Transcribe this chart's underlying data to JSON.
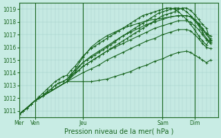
{
  "title": "",
  "xlabel": "Pression niveau de la mer( hPa )",
  "bg_color": "#c8ece4",
  "grid_color_major": "#9ecec8",
  "grid_color_minor": "#b8dcd8",
  "line_color": "#1a6620",
  "tick_color": "#1a6620",
  "label_color": "#1a6620",
  "ylim": [
    1010.5,
    1019.5
  ],
  "yticks": [
    1011,
    1012,
    1013,
    1014,
    1015,
    1016,
    1017,
    1018,
    1019
  ],
  "day_labels": [
    "Mer",
    "Ven",
    "Jeu",
    "Sam",
    "Dim"
  ],
  "day_positions": [
    0,
    0.083,
    0.333,
    0.75,
    0.917
  ],
  "lines": [
    [
      [
        0.0,
        1010.7
      ],
      [
        0.021,
        1011.0
      ],
      [
        0.042,
        1011.2
      ],
      [
        0.063,
        1011.5
      ],
      [
        0.083,
        1011.8
      ],
      [
        0.104,
        1012.0
      ],
      [
        0.125,
        1012.2
      ],
      [
        0.146,
        1012.5
      ],
      [
        0.167,
        1012.7
      ],
      [
        0.188,
        1013.0
      ],
      [
        0.208,
        1013.2
      ],
      [
        0.229,
        1013.3
      ],
      [
        0.25,
        1013.5
      ],
      [
        0.271,
        1013.8
      ],
      [
        0.292,
        1014.0
      ],
      [
        0.313,
        1014.2
      ],
      [
        0.333,
        1014.5
      ],
      [
        0.354,
        1014.7
      ],
      [
        0.375,
        1014.9
      ],
      [
        0.396,
        1015.1
      ],
      [
        0.417,
        1015.3
      ],
      [
        0.438,
        1015.5
      ],
      [
        0.458,
        1015.7
      ],
      [
        0.479,
        1015.9
      ],
      [
        0.5,
        1016.1
      ],
      [
        0.521,
        1016.3
      ],
      [
        0.542,
        1016.5
      ],
      [
        0.563,
        1016.7
      ],
      [
        0.583,
        1016.9
      ],
      [
        0.604,
        1017.1
      ],
      [
        0.625,
        1017.3
      ],
      [
        0.646,
        1017.5
      ],
      [
        0.667,
        1017.7
      ],
      [
        0.688,
        1017.9
      ],
      [
        0.708,
        1018.1
      ],
      [
        0.729,
        1018.3
      ],
      [
        0.75,
        1018.5
      ],
      [
        0.771,
        1018.6
      ],
      [
        0.792,
        1018.7
      ],
      [
        0.813,
        1018.8
      ],
      [
        0.833,
        1019.0
      ],
      [
        0.854,
        1019.1
      ],
      [
        0.875,
        1019.1
      ],
      [
        0.896,
        1018.9
      ],
      [
        0.917,
        1018.6
      ],
      [
        0.938,
        1018.2
      ],
      [
        0.958,
        1017.8
      ],
      [
        0.979,
        1017.5
      ],
      [
        1.0,
        1016.5
      ]
    ],
    [
      [
        0.0,
        1010.7
      ],
      [
        0.021,
        1011.0
      ],
      [
        0.042,
        1011.2
      ],
      [
        0.063,
        1011.5
      ],
      [
        0.083,
        1011.8
      ],
      [
        0.104,
        1012.0
      ],
      [
        0.125,
        1012.2
      ],
      [
        0.146,
        1012.5
      ],
      [
        0.167,
        1012.7
      ],
      [
        0.188,
        1013.0
      ],
      [
        0.208,
        1013.2
      ],
      [
        0.229,
        1013.3
      ],
      [
        0.25,
        1013.5
      ],
      [
        0.271,
        1013.9
      ],
      [
        0.292,
        1014.2
      ],
      [
        0.313,
        1014.5
      ],
      [
        0.333,
        1014.8
      ],
      [
        0.354,
        1015.0
      ],
      [
        0.375,
        1015.2
      ],
      [
        0.396,
        1015.4
      ],
      [
        0.417,
        1015.6
      ],
      [
        0.438,
        1015.8
      ],
      [
        0.458,
        1016.0
      ],
      [
        0.479,
        1016.2
      ],
      [
        0.5,
        1016.4
      ],
      [
        0.521,
        1016.7
      ],
      [
        0.542,
        1016.9
      ],
      [
        0.563,
        1017.1
      ],
      [
        0.583,
        1017.3
      ],
      [
        0.604,
        1017.5
      ],
      [
        0.625,
        1017.7
      ],
      [
        0.646,
        1017.9
      ],
      [
        0.667,
        1018.1
      ],
      [
        0.688,
        1018.3
      ],
      [
        0.708,
        1018.5
      ],
      [
        0.729,
        1018.7
      ],
      [
        0.75,
        1018.8
      ],
      [
        0.771,
        1018.9
      ],
      [
        0.792,
        1019.0
      ],
      [
        0.813,
        1019.1
      ],
      [
        0.833,
        1019.1
      ],
      [
        0.854,
        1019.0
      ],
      [
        0.875,
        1018.8
      ],
      [
        0.896,
        1018.5
      ],
      [
        0.917,
        1018.2
      ],
      [
        0.938,
        1017.8
      ],
      [
        0.958,
        1017.4
      ],
      [
        0.979,
        1017.0
      ],
      [
        1.0,
        1016.6
      ]
    ],
    [
      [
        0.0,
        1010.7
      ],
      [
        0.021,
        1011.0
      ],
      [
        0.042,
        1011.2
      ],
      [
        0.063,
        1011.5
      ],
      [
        0.083,
        1011.8
      ],
      [
        0.104,
        1012.1
      ],
      [
        0.125,
        1012.4
      ],
      [
        0.146,
        1012.7
      ],
      [
        0.167,
        1013.0
      ],
      [
        0.188,
        1013.3
      ],
      [
        0.208,
        1013.5
      ],
      [
        0.229,
        1013.7
      ],
      [
        0.25,
        1013.8
      ],
      [
        0.271,
        1014.2
      ],
      [
        0.292,
        1014.5
      ],
      [
        0.313,
        1014.9
      ],
      [
        0.333,
        1015.3
      ],
      [
        0.354,
        1015.6
      ],
      [
        0.375,
        1015.9
      ],
      [
        0.396,
        1016.1
      ],
      [
        0.417,
        1016.3
      ],
      [
        0.438,
        1016.5
      ],
      [
        0.458,
        1016.7
      ],
      [
        0.479,
        1016.9
      ],
      [
        0.5,
        1017.1
      ],
      [
        0.521,
        1017.3
      ],
      [
        0.542,
        1017.5
      ],
      [
        0.563,
        1017.7
      ],
      [
        0.583,
        1017.9
      ],
      [
        0.604,
        1018.1
      ],
      [
        0.625,
        1018.3
      ],
      [
        0.646,
        1018.5
      ],
      [
        0.667,
        1018.6
      ],
      [
        0.688,
        1018.7
      ],
      [
        0.708,
        1018.8
      ],
      [
        0.729,
        1018.9
      ],
      [
        0.75,
        1019.0
      ],
      [
        0.771,
        1019.1
      ],
      [
        0.792,
        1019.1
      ],
      [
        0.813,
        1019.0
      ],
      [
        0.833,
        1018.8
      ],
      [
        0.854,
        1018.5
      ],
      [
        0.875,
        1018.2
      ],
      [
        0.896,
        1017.8
      ],
      [
        0.917,
        1017.4
      ],
      [
        0.938,
        1016.9
      ],
      [
        0.958,
        1016.5
      ],
      [
        0.979,
        1016.2
      ],
      [
        1.0,
        1016.7
      ]
    ],
    [
      [
        0.0,
        1010.7
      ],
      [
        0.083,
        1011.8
      ],
      [
        0.25,
        1013.3
      ],
      [
        0.333,
        1015.2
      ],
      [
        0.375,
        1016.0
      ],
      [
        0.417,
        1016.5
      ],
      [
        0.458,
        1016.9
      ],
      [
        0.5,
        1017.2
      ],
      [
        0.542,
        1017.5
      ],
      [
        0.583,
        1017.7
      ],
      [
        0.625,
        1017.9
      ],
      [
        0.667,
        1018.1
      ],
      [
        0.708,
        1018.2
      ],
      [
        0.75,
        1018.3
      ],
      [
        0.792,
        1018.4
      ],
      [
        0.833,
        1018.5
      ],
      [
        0.875,
        1018.5
      ],
      [
        0.896,
        1018.4
      ],
      [
        0.917,
        1018.2
      ],
      [
        0.938,
        1017.9
      ],
      [
        0.958,
        1017.5
      ],
      [
        0.979,
        1017.1
      ],
      [
        1.0,
        1016.9
      ]
    ],
    [
      [
        0.0,
        1010.7
      ],
      [
        0.083,
        1011.8
      ],
      [
        0.25,
        1013.3
      ],
      [
        0.333,
        1014.8
      ],
      [
        0.375,
        1015.3
      ],
      [
        0.417,
        1015.7
      ],
      [
        0.458,
        1016.1
      ],
      [
        0.5,
        1016.5
      ],
      [
        0.542,
        1016.9
      ],
      [
        0.583,
        1017.2
      ],
      [
        0.625,
        1017.5
      ],
      [
        0.667,
        1017.8
      ],
      [
        0.708,
        1018.0
      ],
      [
        0.75,
        1018.2
      ],
      [
        0.792,
        1018.4
      ],
      [
        0.833,
        1018.5
      ],
      [
        0.875,
        1018.5
      ],
      [
        0.896,
        1018.4
      ],
      [
        0.917,
        1018.1
      ],
      [
        0.938,
        1017.7
      ],
      [
        0.958,
        1017.2
      ],
      [
        0.979,
        1016.7
      ],
      [
        1.0,
        1016.4
      ]
    ],
    [
      [
        0.0,
        1010.7
      ],
      [
        0.083,
        1011.8
      ],
      [
        0.25,
        1013.3
      ],
      [
        0.333,
        1014.5
      ],
      [
        0.375,
        1014.9
      ],
      [
        0.417,
        1015.3
      ],
      [
        0.458,
        1015.7
      ],
      [
        0.5,
        1016.0
      ],
      [
        0.542,
        1016.3
      ],
      [
        0.583,
        1016.6
      ],
      [
        0.625,
        1016.9
      ],
      [
        0.667,
        1017.2
      ],
      [
        0.708,
        1017.5
      ],
      [
        0.75,
        1017.7
      ],
      [
        0.792,
        1017.9
      ],
      [
        0.833,
        1018.1
      ],
      [
        0.875,
        1018.1
      ],
      [
        0.896,
        1018.0
      ],
      [
        0.917,
        1017.7
      ],
      [
        0.938,
        1017.4
      ],
      [
        0.958,
        1017.0
      ],
      [
        0.979,
        1016.6
      ],
      [
        1.0,
        1016.3
      ]
    ],
    [
      [
        0.0,
        1010.7
      ],
      [
        0.083,
        1011.8
      ],
      [
        0.25,
        1013.3
      ],
      [
        0.333,
        1014.0
      ],
      [
        0.375,
        1014.3
      ],
      [
        0.417,
        1014.6
      ],
      [
        0.458,
        1015.0
      ],
      [
        0.5,
        1015.3
      ],
      [
        0.542,
        1015.6
      ],
      [
        0.583,
        1015.9
      ],
      [
        0.625,
        1016.2
      ],
      [
        0.667,
        1016.5
      ],
      [
        0.708,
        1016.7
      ],
      [
        0.75,
        1017.0
      ],
      [
        0.792,
        1017.2
      ],
      [
        0.833,
        1017.4
      ],
      [
        0.875,
        1017.4
      ],
      [
        0.896,
        1017.3
      ],
      [
        0.917,
        1017.0
      ],
      [
        0.938,
        1016.7
      ],
      [
        0.958,
        1016.3
      ],
      [
        0.979,
        1016.0
      ],
      [
        1.0,
        1015.9
      ]
    ],
    [
      [
        0.0,
        1010.7
      ],
      [
        0.083,
        1011.8
      ],
      [
        0.25,
        1013.3
      ],
      [
        0.333,
        1013.3
      ],
      [
        0.375,
        1013.3
      ],
      [
        0.417,
        1013.4
      ],
      [
        0.458,
        1013.5
      ],
      [
        0.5,
        1013.7
      ],
      [
        0.542,
        1013.9
      ],
      [
        0.583,
        1014.1
      ],
      [
        0.625,
        1014.4
      ],
      [
        0.667,
        1014.6
      ],
      [
        0.708,
        1014.9
      ],
      [
        0.75,
        1015.1
      ],
      [
        0.792,
        1015.4
      ],
      [
        0.833,
        1015.6
      ],
      [
        0.875,
        1015.7
      ],
      [
        0.896,
        1015.6
      ],
      [
        0.917,
        1015.4
      ],
      [
        0.938,
        1015.2
      ],
      [
        0.958,
        1015.0
      ],
      [
        0.979,
        1014.8
      ],
      [
        1.0,
        1015.0
      ]
    ]
  ]
}
